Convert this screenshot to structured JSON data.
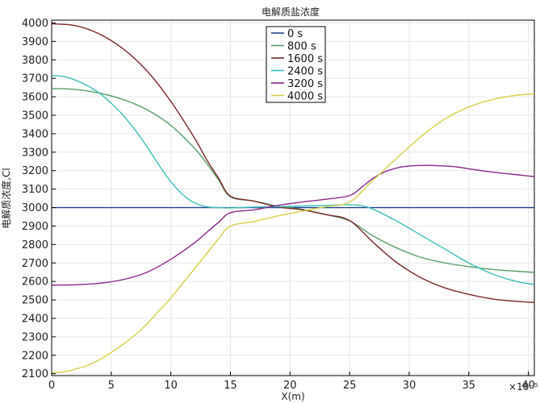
{
  "chart_data": {
    "type": "line",
    "title": "电解质盐浓度",
    "xlabel": "X(m)",
    "ylabel": "电解质浓度,Cl",
    "x_multiplier_label": "×10⁻⁵",
    "xlim": [
      0,
      40.5
    ],
    "ylim": [
      2090,
      4015
    ],
    "x_ticks": [
      0,
      5,
      10,
      15,
      20,
      25,
      30,
      35,
      40
    ],
    "x_tick_labels": [
      "0",
      "5",
      "10",
      "15",
      "20",
      "25",
      "30",
      "35",
      "40"
    ],
    "y_ticks": [
      2100,
      2200,
      2300,
      2400,
      2500,
      2600,
      2700,
      2800,
      2900,
      3000,
      3100,
      3200,
      3300,
      3400,
      3500,
      3600,
      3700,
      3800,
      3900,
      4000
    ],
    "y_tick_labels": [
      "2100",
      "2200",
      "2300",
      "2400",
      "2500",
      "2600",
      "2700",
      "2800",
      "2900",
      "3000",
      "3100",
      "3200",
      "3300",
      "3400",
      "3500",
      "3600",
      "3700",
      "3800",
      "3900",
      "4000"
    ],
    "grid": true,
    "legend_position": "top-center",
    "series": [
      {
        "name": "0 s",
        "color": "#1f3f8f",
        "x": [
          0,
          45
        ],
        "y": [
          3000,
          3000
        ]
      },
      {
        "name": "800 s",
        "color": "#5a9e68",
        "x": [
          0,
          2,
          4,
          6,
          8,
          10,
          12,
          13,
          14,
          15,
          17,
          19,
          21,
          23,
          25,
          27,
          29,
          31,
          33,
          35,
          37,
          39,
          41,
          44
        ],
        "y": [
          3645,
          3640,
          3620,
          3585,
          3530,
          3445,
          3320,
          3240,
          3150,
          3058,
          3035,
          3007,
          2990,
          2962,
          2928,
          2845,
          2780,
          2730,
          2700,
          2680,
          2665,
          2655,
          2648,
          2643
        ]
      },
      {
        "name": "1600 s",
        "color": "#7a2a2a",
        "x": [
          0,
          2,
          4,
          6,
          8,
          10,
          12,
          13,
          14,
          15,
          17,
          19,
          21,
          23,
          25,
          27,
          29,
          31,
          33,
          35,
          37,
          39,
          41,
          44
        ],
        "y": [
          3995,
          3985,
          3940,
          3860,
          3740,
          3575,
          3375,
          3260,
          3160,
          3062,
          3035,
          3003,
          2988,
          2962,
          2930,
          2810,
          2700,
          2620,
          2565,
          2530,
          2505,
          2492,
          2485,
          2478
        ]
      },
      {
        "name": "2400 s",
        "color": "#3dbfb8",
        "x": [
          0,
          1,
          2,
          3,
          4,
          5,
          6,
          7,
          8,
          9,
          10,
          11,
          12,
          13,
          14,
          15,
          17,
          19,
          21,
          23,
          25,
          26,
          27,
          29,
          31,
          33,
          35,
          37,
          39,
          41,
          44
        ],
        "y": [
          3715,
          3710,
          3690,
          3660,
          3620,
          3565,
          3500,
          3420,
          3330,
          3230,
          3140,
          3070,
          3025,
          3005,
          3000,
          2998,
          3003,
          3005,
          3008,
          3012,
          3015,
          3010,
          2990,
          2925,
          2850,
          2775,
          2700,
          2640,
          2600,
          2580,
          2572
        ]
      },
      {
        "name": "3200 s",
        "color": "#8a2a8a",
        "x": [
          0,
          2,
          4,
          6,
          8,
          10,
          12,
          13,
          14,
          15,
          17,
          19,
          21,
          23,
          25,
          26,
          27,
          28,
          29,
          30,
          31,
          32,
          33,
          34,
          35,
          37,
          39,
          41,
          44
        ],
        "y": [
          2580,
          2582,
          2590,
          2610,
          2650,
          2720,
          2810,
          2865,
          2920,
          2972,
          2988,
          3012,
          3030,
          3045,
          3065,
          3110,
          3160,
          3195,
          3215,
          3225,
          3228,
          3228,
          3225,
          3220,
          3210,
          3192,
          3178,
          3165,
          3155
        ]
      },
      {
        "name": "4000 s",
        "color": "#d9cf4a",
        "x": [
          0,
          1,
          2,
          3,
          4,
          5,
          6,
          7,
          8,
          9,
          10,
          11,
          12,
          13,
          14,
          15,
          17,
          19,
          21,
          23,
          25,
          27,
          29,
          31,
          33,
          35,
          37,
          39,
          41,
          44
        ],
        "y": [
          2105,
          2110,
          2125,
          2145,
          2175,
          2215,
          2260,
          2310,
          2370,
          2440,
          2510,
          2590,
          2670,
          2750,
          2830,
          2900,
          2925,
          2955,
          2980,
          3005,
          3030,
          3150,
          3270,
          3385,
          3480,
          3545,
          3585,
          3608,
          3617,
          3620
        ]
      }
    ]
  }
}
